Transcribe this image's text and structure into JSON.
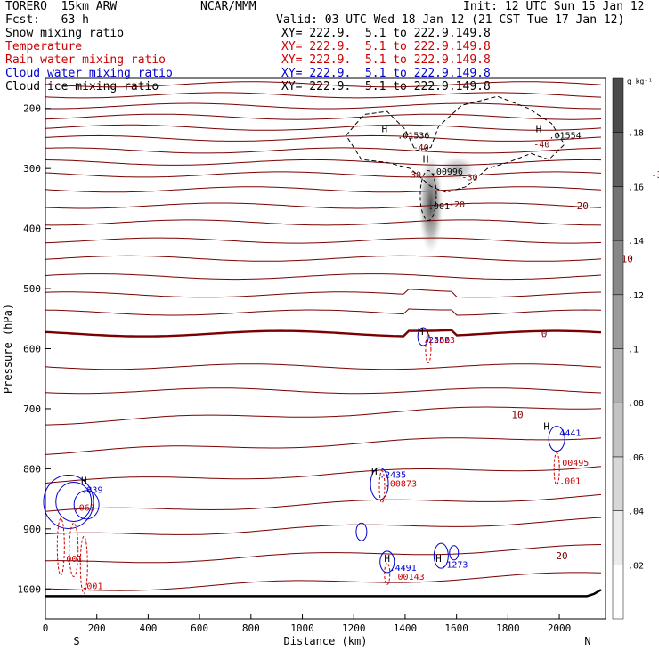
{
  "header": {
    "model": "TORERO  15km ARW",
    "org": "NCAR/MMM",
    "init": "Init: 12 UTC Sun 15 Jan 12",
    "fcst": "Fcst:   63 h",
    "valid": "Valid: 03 UTC Wed 18 Jan 12 (21 CST Tue 17 Jan 12)"
  },
  "fields": [
    {
      "name": "Snow mixing ratio",
      "xy": "XY= 222.9.  5.1 to 222.9.149.8",
      "color": "#000000"
    },
    {
      "name": "Temperature",
      "xy": "XY= 222.9.  5.1 to 222.9.149.8",
      "color": "#cc0000"
    },
    {
      "name": "Rain water mixing ratio",
      "xy": "XY= 222.9.  5.1 to 222.9.149.8",
      "color": "#cc0000"
    },
    {
      "name": "Cloud water mixing ratio",
      "xy": "XY= 222.9.  5.1 to 222.9.149.8",
      "color": "#0000cc"
    },
    {
      "name": "Cloud ice mixing ratio",
      "xy": "XY= 222.9.  5.1 to 222.9.149.8",
      "color": "#000000"
    }
  ],
  "chart_data": {
    "type": "cross-section contour",
    "xlabel": "Distance (km)",
    "ylabel": "Pressure (hPa)",
    "xlim": [
      0,
      2180
    ],
    "ylim": [
      1050,
      150
    ],
    "x_ticks": [
      0,
      200,
      400,
      600,
      800,
      1000,
      1200,
      1400,
      1600,
      1800,
      2000
    ],
    "y_ticks": [
      200,
      300,
      400,
      500,
      600,
      700,
      800,
      900,
      1000
    ],
    "end_labels": {
      "left": "S",
      "right": "N"
    },
    "colorbar": {
      "unit": "g kg⁻¹",
      "ticks": [
        0.02,
        0.04,
        0.06,
        0.08,
        0.1,
        0.12,
        0.14,
        0.16,
        0.18
      ],
      "tick_labels": [
        ".02",
        ".04",
        ".06",
        ".08",
        ".1",
        ".12",
        ".14",
        ".16",
        ".18"
      ],
      "max": 0.2
    },
    "temperature_isotherms": [
      {
        "pressure": 160
      },
      {
        "pressure": 178
      },
      {
        "pressure": 196
      },
      {
        "pressure": 214
      },
      {
        "pressure": 232
      },
      {
        "pressure": 250
      },
      {
        "pressure": 270
      },
      {
        "pressure": 290
      },
      {
        "pressure": 310,
        "label": "-30",
        "label_x": [
          690
        ]
      },
      {
        "pressure": 335
      },
      {
        "pressure": 362,
        "label": "-20",
        "label_x": [
          600,
          730
        ]
      },
      {
        "pressure": 390
      },
      {
        "pressure": 420
      },
      {
        "pressure": 450,
        "label": "-10",
        "label_x": [
          650,
          740
        ]
      },
      {
        "pressure": 480
      },
      {
        "pressure": 510
      },
      {
        "pressure": 540
      },
      {
        "pressure": 575,
        "label": "0",
        "label_x": [
          560,
          750
        ],
        "bold": true
      },
      {
        "pressure": 630
      },
      {
        "pressure": 670
      },
      {
        "pressure": 710,
        "label": "10",
        "label_x": [
          530,
          730
        ]
      },
      {
        "pressure": 760
      },
      {
        "pressure": 810
      },
      {
        "pressure": 860
      },
      {
        "pressure": 900
      },
      {
        "pressure": 945,
        "label": "20",
        "label_x": [
          580,
          940
        ]
      },
      {
        "pressure": 990
      }
    ],
    "snow_max_label": ".001",
    "snow_center": {
      "x": 1500,
      "p": 360
    },
    "ice_maxima": [
      {
        "x": 1370,
        "p": 250,
        "label": ".01536"
      },
      {
        "x": 1500,
        "p": 310,
        "label": ".00996"
      },
      {
        "x": 1960,
        "p": 250,
        "label": ".01554"
      }
    ],
    "ice_contour_labels": [
      {
        "x": 1430,
        "p": 270,
        "label": "-40"
      },
      {
        "x": 1900,
        "p": 265,
        "label": "-40"
      },
      {
        "x": 1400,
        "p": 315,
        "label": "-30"
      },
      {
        "x": 1620,
        "p": 320,
        "label": "-30"
      },
      {
        "x": 1570,
        "p": 365,
        "label": "-20"
      }
    ],
    "cloud_water_maxima": [
      {
        "x": 140,
        "p": 840,
        "label": ".839"
      },
      {
        "x": 1300,
        "p": 815,
        "label": ".2435"
      },
      {
        "x": 1980,
        "p": 745,
        "label": ".4441"
      },
      {
        "x": 1340,
        "p": 970,
        "label": ".4491"
      },
      {
        "x": 1540,
        "p": 965,
        "label": ".1273"
      },
      {
        "x": 1470,
        "p": 590,
        "label": ".2566"
      }
    ],
    "rain_maxima": [
      {
        "x": 110,
        "p": 870,
        "label": ".063"
      },
      {
        "x": 60,
        "p": 955,
        "label": ".001"
      },
      {
        "x": 140,
        "p": 1000,
        "label": ".001"
      },
      {
        "x": 1320,
        "p": 830,
        "label": ".00873"
      },
      {
        "x": 1350,
        "p": 985,
        "label": ".00143"
      },
      {
        "x": 1990,
        "p": 795,
        "label": ".00495"
      },
      {
        "x": 2000,
        "p": 825,
        "label": ".001"
      },
      {
        "x": 1490,
        "p": 590,
        "label": ".2523"
      }
    ],
    "h_markers": [
      {
        "x": 1320,
        "p": 240
      },
      {
        "x": 1480,
        "p": 290
      },
      {
        "x": 1920,
        "p": 240
      },
      {
        "x": 1460,
        "p": 577
      },
      {
        "x": 1280,
        "p": 810
      },
      {
        "x": 1950,
        "p": 735
      },
      {
        "x": 150,
        "p": 825
      },
      {
        "x": 1330,
        "p": 955
      },
      {
        "x": 1530,
        "p": 955
      }
    ],
    "sigma_values": [
      10,
      20
    ]
  }
}
